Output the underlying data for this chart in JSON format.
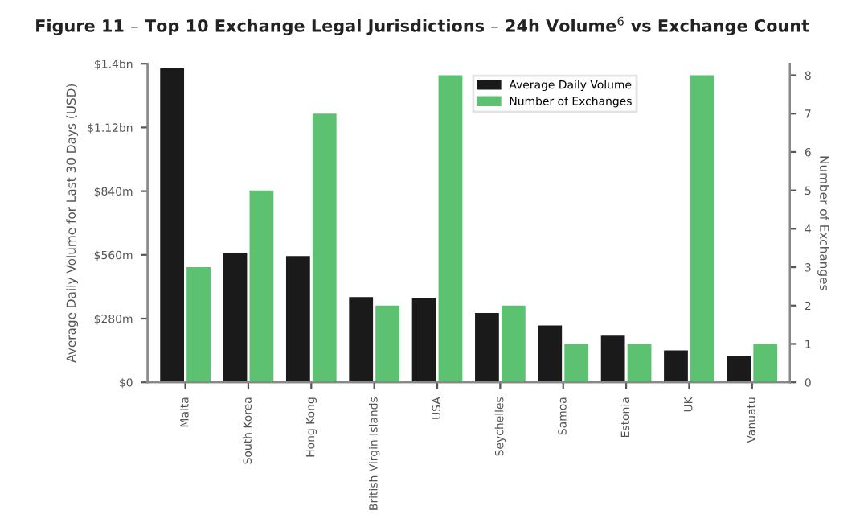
{
  "chart_data": {
    "type": "bar",
    "title": "Figure 11 – Top 10 Exchange Legal Jurisdictions – 24h Volume$^{6}$ vs Exchange Count",
    "categories": [
      "Malta",
      "South Korea",
      "Hong Kong",
      "British Virgin Islands",
      "USA",
      "Seychelles",
      "Samoa",
      "Estonia",
      "UK",
      "Vanuatu"
    ],
    "series": [
      {
        "name": "Average Daily Volume",
        "color": "#1a1a1a",
        "values": [
          1380000000,
          570000000,
          555000000,
          375000000,
          370000000,
          305000000,
          250000000,
          205000000,
          140000000,
          115000000
        ]
      },
      {
        "name": "Number of Exchanges",
        "color": "#5cc171",
        "axis": "y2",
        "values": [
          3,
          5,
          7,
          2,
          8,
          2,
          1,
          1,
          8,
          1
        ]
      }
    ],
    "ylabel": "Average Daily Volume for Last 30 Days (USD)",
    "y2label": "Number of Exchanges",
    "ylim": [
      0,
      1400000000
    ],
    "yticks": [
      {
        "value": 0,
        "label": "$0"
      },
      {
        "value": 280000000,
        "label": "$280m"
      },
      {
        "value": 560000000,
        "label": "$560m"
      },
      {
        "value": 840000000,
        "label": "$840m"
      },
      {
        "value": 1120000000,
        "label": "$1.12bn"
      },
      {
        "value": 1400000000,
        "label": "$1.4bn"
      }
    ],
    "y2lim": [
      0,
      8.3
    ],
    "y2ticks": [
      0,
      1,
      2,
      3,
      4,
      5,
      6,
      7,
      8
    ],
    "legend": "top right",
    "grid": false
  }
}
